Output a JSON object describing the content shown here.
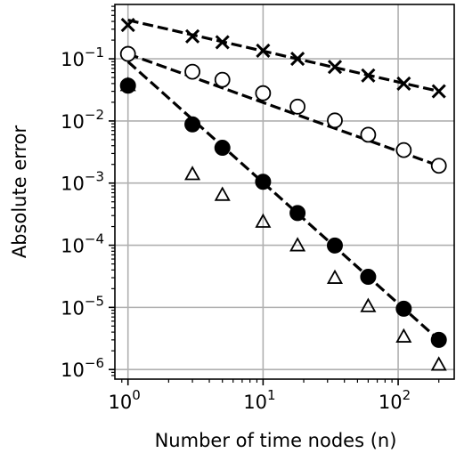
{
  "chart_data": {
    "type": "scatter",
    "title": "",
    "xlabel": "Number of time nodes (n)",
    "ylabel": "Absolute error",
    "x_scale": "log",
    "y_scale": "log",
    "xlim": [
      0.8,
      260
    ],
    "ylim": [
      7e-07,
      0.75
    ],
    "grid": true,
    "legend": "none",
    "x_ticks": [
      {
        "value": 1,
        "base": "10",
        "exp": "0"
      },
      {
        "value": 10,
        "base": "10",
        "exp": "1"
      },
      {
        "value": 100,
        "base": "10",
        "exp": "2"
      }
    ],
    "y_ticks": [
      {
        "value": 1e-06,
        "base": "10",
        "exp": "−6"
      },
      {
        "value": 1e-05,
        "base": "10",
        "exp": "−5"
      },
      {
        "value": 0.0001,
        "base": "10",
        "exp": "−4"
      },
      {
        "value": 0.001,
        "base": "10",
        "exp": "−3"
      },
      {
        "value": 0.01,
        "base": "10",
        "exp": "−2"
      },
      {
        "value": 0.1,
        "base": "10",
        "exp": "−1"
      }
    ],
    "series": [
      {
        "marker": "x",
        "points": [
          [
            1,
            0.35
          ],
          [
            3,
            0.23
          ],
          [
            5,
            0.185
          ],
          [
            10,
            0.135
          ],
          [
            18,
            0.1
          ],
          [
            34,
            0.074
          ],
          [
            60,
            0.054
          ],
          [
            110,
            0.04
          ],
          [
            200,
            0.03
          ]
        ],
        "fit_line": [
          [
            1,
            0.42
          ],
          [
            200,
            0.03
          ]
        ]
      },
      {
        "marker": "open-circle",
        "points": [
          [
            1,
            0.12
          ],
          [
            3,
            0.062
          ],
          [
            5,
            0.046
          ],
          [
            10,
            0.028
          ],
          [
            18,
            0.017
          ],
          [
            34,
            0.0102
          ],
          [
            60,
            0.006
          ],
          [
            110,
            0.0034
          ],
          [
            200,
            0.0019
          ]
        ],
        "fit_line": [
          [
            1,
            0.12
          ],
          [
            200,
            0.0019
          ]
        ]
      },
      {
        "marker": "filled-circle",
        "points": [
          [
            1,
            0.037
          ],
          [
            3,
            0.0088
          ],
          [
            5,
            0.0037
          ],
          [
            10,
            0.00105
          ],
          [
            18,
            0.00033
          ],
          [
            34,
            9.9e-05
          ],
          [
            60,
            3.1e-05
          ],
          [
            110,
            9.5e-06
          ],
          [
            200,
            3e-06
          ]
        ],
        "fit_line": [
          [
            1,
            0.09
          ],
          [
            200,
            3e-06
          ]
        ]
      },
      {
        "marker": "open-triangle",
        "points": [
          [
            1,
            0.038
          ],
          [
            3,
            0.0014
          ],
          [
            5,
            0.00065
          ],
          [
            10,
            0.00024
          ],
          [
            18,
            0.0001
          ],
          [
            34,
            3e-05
          ],
          [
            60,
            1.05e-05
          ],
          [
            110,
            3.4e-06
          ],
          [
            200,
            1.2e-06
          ]
        ]
      }
    ]
  }
}
